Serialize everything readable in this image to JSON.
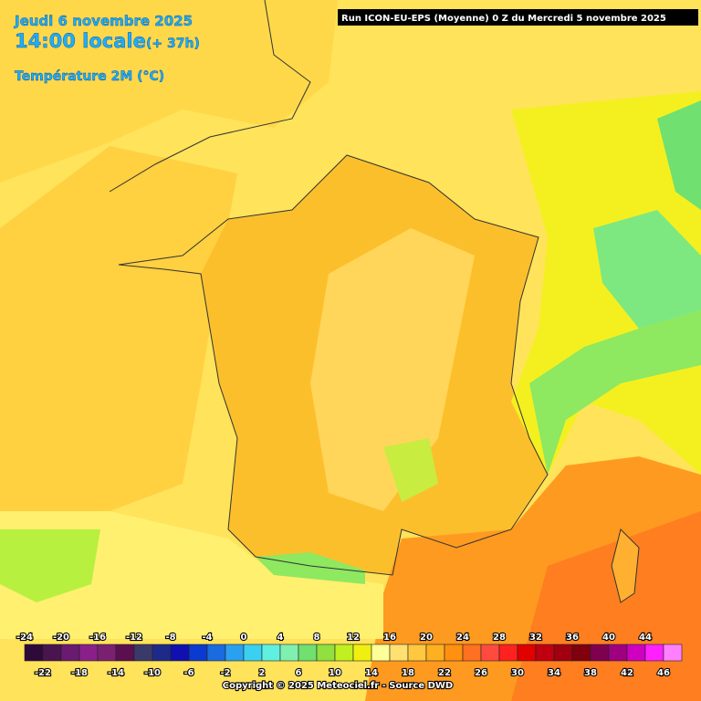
{
  "header": {
    "date": "Jeudi 6 novembre 2025",
    "time": "14:00 locale",
    "offset": "(+ 37h)",
    "variable": "Température 2M (°C)"
  },
  "run": "Run ICON-EU-EPS (Moyenne) 0 Z du Mercredi 5 novembre 2025",
  "legend": {
    "values": [
      -24,
      -22,
      -20,
      -18,
      -16,
      -14,
      -12,
      -10,
      -8,
      -6,
      -4,
      -2,
      0,
      2,
      4,
      6,
      8,
      10,
      12,
      14,
      16,
      18,
      20,
      22,
      24,
      26,
      28,
      30,
      32,
      34,
      36,
      38,
      40,
      42,
      44,
      46
    ],
    "colors": [
      "#2d0a3a",
      "#4a1450",
      "#6a1a70",
      "#8a1f8a",
      "#7a2070",
      "#5a1050",
      "#3a3a6a",
      "#1e2a8a",
      "#1010b0",
      "#0a3ad0",
      "#1a6ae0",
      "#2aa0f0",
      "#3ad0f0",
      "#60f0e0",
      "#80f0b0",
      "#70e070",
      "#90e040",
      "#c0f020",
      "#f0f010",
      "#ffff99",
      "#ffe070",
      "#ffc840",
      "#ffb020",
      "#ff9010",
      "#ff7020",
      "#ff4a40",
      "#ff2020",
      "#e00000",
      "#c00010",
      "#a00010",
      "#800010",
      "#800050",
      "#a00080",
      "#d000c0",
      "#ff20ff",
      "#ff80ff"
    ]
  },
  "copyright": "Copyright © 2025 Meteociel.fr - Source DWD"
}
